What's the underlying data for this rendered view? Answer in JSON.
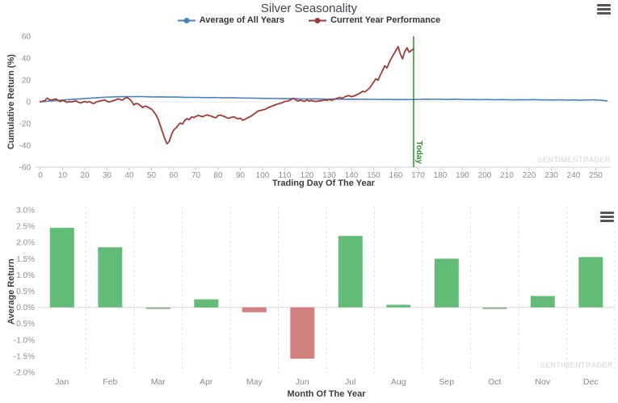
{
  "chart_data": [
    {
      "type": "line",
      "title": "Silver Seasonality",
      "xlabel": "Trading Day Of The Year",
      "ylabel": "Cumulative Return (%)",
      "xlim": [
        0,
        257
      ],
      "ylim": [
        -60,
        60
      ],
      "xticks": [
        0,
        10,
        20,
        30,
        40,
        50,
        60,
        70,
        80,
        90,
        100,
        110,
        120,
        130,
        140,
        150,
        160,
        170,
        180,
        190,
        200,
        210,
        220,
        230,
        240,
        250
      ],
      "yticks": [
        60,
        40,
        20,
        0,
        -20,
        -40,
        -60
      ],
      "legend_position": "top-center",
      "grid": "zero-line-only",
      "watermark": "SENTIMENTRADER",
      "menu_icon": "hamburger-menu-icon",
      "today_line": {
        "x": 168,
        "label": "Today",
        "color": "#2e8b2e"
      },
      "series": [
        {
          "name": "Average of All Years",
          "color": "#4d80bf",
          "points": [
            [
              0,
              0
            ],
            [
              3,
              0.5
            ],
            [
              6,
              1
            ],
            [
              9,
              1.4
            ],
            [
              12,
              1.9
            ],
            [
              15,
              2.3
            ],
            [
              18,
              2.7
            ],
            [
              21,
              3.1
            ],
            [
              24,
              3.5
            ],
            [
              27,
              3.9
            ],
            [
              30,
              4.2
            ],
            [
              33,
              4.5
            ],
            [
              36,
              4.7
            ],
            [
              39,
              4.8
            ],
            [
              42,
              4.7
            ],
            [
              45,
              4.8
            ],
            [
              48,
              4.6
            ],
            [
              51,
              4.4
            ],
            [
              54,
              4.5
            ],
            [
              57,
              4.3
            ],
            [
              60,
              4.4
            ],
            [
              63,
              4.2
            ],
            [
              66,
              4
            ],
            [
              69,
              4.1
            ],
            [
              72,
              3.9
            ],
            [
              75,
              3.8
            ],
            [
              78,
              3.9
            ],
            [
              81,
              3.7
            ],
            [
              84,
              3.6
            ],
            [
              87,
              3.7
            ],
            [
              90,
              3.5
            ],
            [
              93,
              3.4
            ],
            [
              96,
              3.3
            ],
            [
              99,
              3.2
            ],
            [
              102,
              3.1
            ],
            [
              105,
              3
            ],
            [
              108,
              2.9
            ],
            [
              111,
              2.8
            ],
            [
              114,
              2.9
            ],
            [
              117,
              2.7
            ],
            [
              120,
              2.6
            ],
            [
              123,
              2.7
            ],
            [
              126,
              2.5
            ],
            [
              129,
              2.4
            ],
            [
              132,
              2.5
            ],
            [
              135,
              2.4
            ],
            [
              138,
              2.3
            ],
            [
              141,
              2.4
            ],
            [
              144,
              2.2
            ],
            [
              147,
              2.3
            ],
            [
              150,
              2.2
            ],
            [
              153,
              2.1
            ],
            [
              156,
              2.2
            ],
            [
              159,
              2
            ],
            [
              162,
              2.1
            ],
            [
              165,
              2
            ],
            [
              168,
              2.1
            ],
            [
              171,
              2.2
            ],
            [
              174,
              2.4
            ],
            [
              177,
              2.2
            ],
            [
              180,
              2.3
            ],
            [
              183,
              2.1
            ],
            [
              186,
              2.4
            ],
            [
              189,
              2.2
            ],
            [
              192,
              2
            ],
            [
              195,
              2.1
            ],
            [
              198,
              1.9
            ],
            [
              201,
              2.1
            ],
            [
              204,
              1.8
            ],
            [
              207,
              2
            ],
            [
              210,
              1.9
            ],
            [
              213,
              1.7
            ],
            [
              216,
              1.9
            ],
            [
              219,
              1.8
            ],
            [
              222,
              2
            ],
            [
              225,
              1.7
            ],
            [
              228,
              1.8
            ],
            [
              231,
              1.6
            ],
            [
              234,
              1.8
            ],
            [
              237,
              1.5
            ],
            [
              240,
              1.7
            ],
            [
              243,
              1.4
            ],
            [
              246,
              1.6
            ],
            [
              249,
              1.8
            ],
            [
              252,
              1.4
            ],
            [
              255,
              0.9
            ]
          ]
        },
        {
          "name": "Current Year Performance",
          "color": "#9e3b3b",
          "points": [
            [
              0,
              0
            ],
            [
              1,
              0.5
            ],
            [
              2,
              1
            ],
            [
              3,
              3.3
            ],
            [
              4,
              2
            ],
            [
              5,
              1.4
            ],
            [
              6,
              2
            ],
            [
              7,
              2.6
            ],
            [
              8,
              1
            ],
            [
              9,
              0.2
            ],
            [
              10,
              1.2
            ],
            [
              11,
              0.6
            ],
            [
              12,
              -0.6
            ],
            [
              13,
              0.2
            ],
            [
              14,
              -0.2
            ],
            [
              15,
              0.4
            ],
            [
              16,
              0.8
            ],
            [
              17,
              -0.4
            ],
            [
              18,
              -1.2
            ],
            [
              19,
              -0.4
            ],
            [
              20,
              0.3
            ],
            [
              21,
              -0.6
            ],
            [
              22,
              0.2
            ],
            [
              23,
              -1
            ],
            [
              24,
              -1.7
            ],
            [
              25,
              -0.4
            ],
            [
              26,
              0.3
            ],
            [
              27,
              0.8
            ],
            [
              28,
              1.2
            ],
            [
              29,
              1.6
            ],
            [
              30,
              0.4
            ],
            [
              31,
              -0.2
            ],
            [
              32,
              0.6
            ],
            [
              33,
              1.1
            ],
            [
              34,
              1.8
            ],
            [
              35,
              2.7
            ],
            [
              36,
              2
            ],
            [
              37,
              1.5
            ],
            [
              38,
              3.2
            ],
            [
              39,
              3.9
            ],
            [
              40,
              2.7
            ],
            [
              41,
              0.5
            ],
            [
              42,
              -2.8
            ],
            [
              43,
              -1.6
            ],
            [
              44,
              -1.9
            ],
            [
              45,
              -3.4
            ],
            [
              46,
              -5.4
            ],
            [
              47,
              -4
            ],
            [
              48,
              -4.4
            ],
            [
              49,
              -5.8
            ],
            [
              50,
              -6.7
            ],
            [
              51,
              -9
            ],
            [
              52,
              -12
            ],
            [
              53,
              -16
            ],
            [
              54,
              -22
            ],
            [
              55,
              -28
            ],
            [
              56,
              -34
            ],
            [
              57,
              -38.5
            ],
            [
              58,
              -36.5
            ],
            [
              59,
              -30
            ],
            [
              60,
              -26
            ],
            [
              61,
              -24
            ],
            [
              62,
              -21.5
            ],
            [
              63,
              -19.5
            ],
            [
              64,
              -20.5
            ],
            [
              65,
              -17
            ],
            [
              66,
              -15.5
            ],
            [
              67,
              -16.5
            ],
            [
              68,
              -14
            ],
            [
              69,
              -14.5
            ],
            [
              70,
              -13.5
            ],
            [
              71,
              -12.5
            ],
            [
              72,
              -13
            ],
            [
              73,
              -13.8
            ],
            [
              74,
              -12.8
            ],
            [
              75,
              -12
            ],
            [
              76,
              -12.8
            ],
            [
              77,
              -13.2
            ],
            [
              78,
              -14.2
            ],
            [
              79,
              -14.6
            ],
            [
              80,
              -12.6
            ],
            [
              81,
              -12.2
            ],
            [
              82,
              -13
            ],
            [
              83,
              -13.6
            ],
            [
              84,
              -14.8
            ],
            [
              85,
              -15.2
            ],
            [
              86,
              -14.2
            ],
            [
              87,
              -13.8
            ],
            [
              88,
              -14.8
            ],
            [
              89,
              -15.6
            ],
            [
              90,
              -15
            ],
            [
              91,
              -17
            ],
            [
              92,
              -16.2
            ],
            [
              93,
              -15
            ],
            [
              94,
              -14
            ],
            [
              95,
              -13
            ],
            [
              96,
              -11.5
            ],
            [
              97,
              -10
            ],
            [
              98,
              -8.5
            ],
            [
              99,
              -8
            ],
            [
              100,
              -7.5
            ],
            [
              101,
              -7
            ],
            [
              102,
              -6
            ],
            [
              103,
              -5
            ],
            [
              104,
              -4.2
            ],
            [
              105,
              -3.4
            ],
            [
              106,
              -2.6
            ],
            [
              107,
              -2
            ],
            [
              108,
              -1.4
            ],
            [
              109,
              -0.8
            ],
            [
              110,
              0.2
            ],
            [
              111,
              0.6
            ],
            [
              112,
              1.2
            ],
            [
              113,
              2.2
            ],
            [
              114,
              3.1
            ],
            [
              115,
              1.6
            ],
            [
              116,
              0.6
            ],
            [
              117,
              1.6
            ],
            [
              118,
              0.8
            ],
            [
              119,
              0.4
            ],
            [
              120,
              1.6
            ],
            [
              121,
              0.6
            ],
            [
              122,
              1.2
            ],
            [
              123,
              0.6
            ],
            [
              124,
              0.3
            ],
            [
              125,
              0.6
            ],
            [
              126,
              0.9
            ],
            [
              127,
              1.2
            ],
            [
              128,
              1.6
            ],
            [
              129,
              1.2
            ],
            [
              130,
              2.2
            ],
            [
              131,
              1.3
            ],
            [
              132,
              2
            ],
            [
              133,
              2.8
            ],
            [
              134,
              3.4
            ],
            [
              135,
              4.1
            ],
            [
              136,
              3.1
            ],
            [
              137,
              4.6
            ],
            [
              138,
              5.2
            ],
            [
              139,
              5.6
            ],
            [
              140,
              4.6
            ],
            [
              141,
              5.2
            ],
            [
              142,
              6.1
            ],
            [
              143,
              7
            ],
            [
              144,
              8.1
            ],
            [
              145,
              9.6
            ],
            [
              146,
              9
            ],
            [
              147,
              10.5
            ],
            [
              148,
              12.2
            ],
            [
              149,
              15
            ],
            [
              150,
              18
            ],
            [
              151,
              21
            ],
            [
              152,
              19.8
            ],
            [
              153,
              24.5
            ],
            [
              154,
              28.5
            ],
            [
              155,
              33
            ],
            [
              156,
              31
            ],
            [
              157,
              36
            ],
            [
              158,
              40
            ],
            [
              159,
              43.5
            ],
            [
              160,
              47
            ],
            [
              161,
              50.5
            ],
            [
              162,
              44
            ],
            [
              163,
              39.5
            ],
            [
              164,
              46
            ],
            [
              165,
              49.5
            ],
            [
              166,
              45.5
            ],
            [
              167,
              47
            ],
            [
              168,
              48.5
            ]
          ]
        }
      ]
    },
    {
      "type": "bar",
      "categories": [
        "Jan",
        "Feb",
        "Mar",
        "Apr",
        "May",
        "Jun",
        "Jul",
        "Aug",
        "Sep",
        "Oct",
        "Nov",
        "Dec"
      ],
      "values": [
        2.45,
        1.85,
        -0.03,
        0.25,
        -0.15,
        -1.58,
        2.2,
        0.08,
        1.5,
        -0.02,
        0.35,
        1.55
      ],
      "bar_colors": [
        "#62bc78",
        "#62bc78",
        "#8fae94",
        "#62bc78",
        "#d27f7f",
        "#d27f7f",
        "#62bc78",
        "#62bc78",
        "#62bc78",
        "#8fae94",
        "#62bc78",
        "#62bc78"
      ],
      "positive_color": "#62bc78",
      "negative_color": "#d27f7f",
      "xlabel": "Month Of The Year",
      "ylabel": "Average Return",
      "ylim": [
        -2.0,
        3.0
      ],
      "ytick_step": 0.5,
      "ytick_format": "percent_1dp",
      "grid": "vertical-dashed",
      "watermark": "SENTIMENTRADER",
      "menu_icon": "hamburger-menu-icon"
    }
  ]
}
